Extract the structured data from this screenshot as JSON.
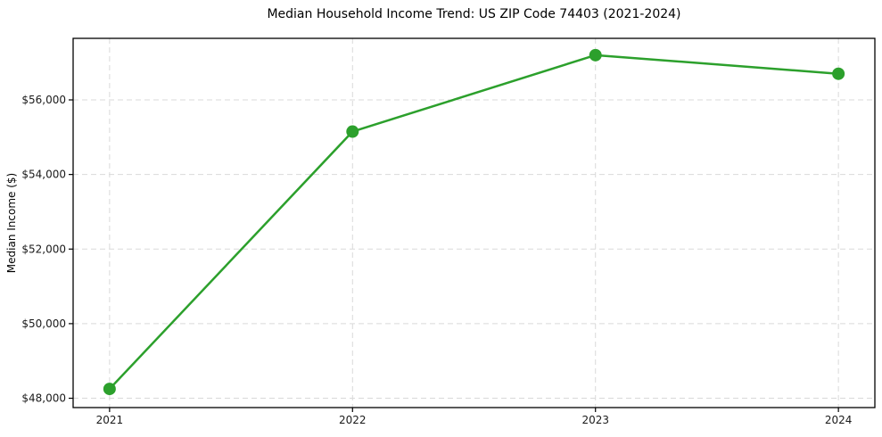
{
  "chart_data": {
    "type": "line",
    "title": "Median Household Income Trend: US ZIP Code 74403 (2021-2024)",
    "xlabel": "",
    "ylabel": "Median Income ($)",
    "x": [
      2021,
      2022,
      2023,
      2024
    ],
    "x_tick_labels": [
      "2021",
      "2022",
      "2023",
      "2024"
    ],
    "values": [
      48250,
      55150,
      57200,
      56700
    ],
    "yticks": [
      48000,
      50000,
      52000,
      54000,
      56000
    ],
    "y_tick_labels": [
      "$48,000",
      "$50,000",
      "$52,000",
      "$54,000",
      "$56,000"
    ],
    "xlim": [
      2020.85,
      2024.15
    ],
    "ylim": [
      47750,
      57650
    ],
    "grid": true,
    "grid_style": "dashed",
    "legend_position": "none",
    "marker": "circle",
    "marker_radius": 7,
    "line_width": 2.5,
    "colors": {
      "line": "#2ca02c",
      "marker": "#2ca02c",
      "grid": "#d9d9d9",
      "axis": "#000000",
      "tick_text": "#1a1a1a",
      "background": "#ffffff"
    }
  }
}
